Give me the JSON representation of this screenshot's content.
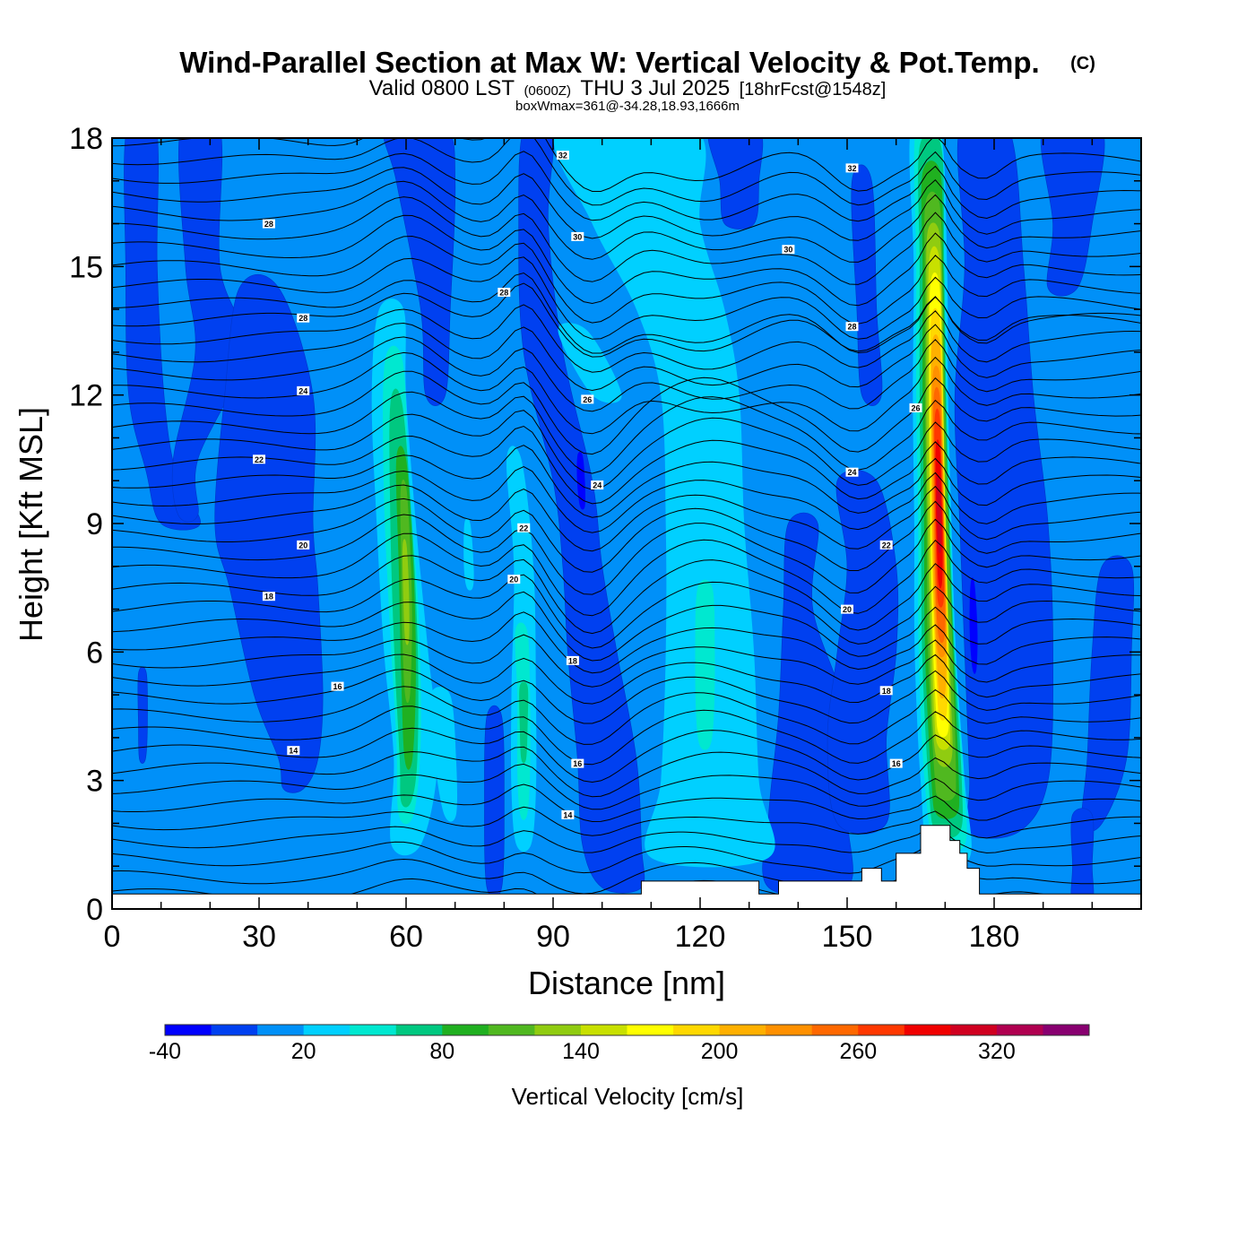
{
  "title": {
    "main": "Wind-Parallel Section at Max W: Vertical Velocity & Pot.Temp.",
    "copyright": "(C)",
    "valid_prefix": "Valid 0800 LST",
    "valid_utc": "(0600Z)",
    "valid_date": "THU 3 Jul 2025",
    "forecast": "[18hrFcst@1548z]",
    "box_info": "boxWmax=361@-34.28,18.93,1666m"
  },
  "chart_data": {
    "type": "heatmap",
    "xlabel": "Distance [nm]",
    "ylabel": "Height [Kft MSL]",
    "xlim": [
      0,
      210
    ],
    "ylim": [
      0,
      18
    ],
    "xticks": [
      0,
      30,
      60,
      90,
      120,
      150,
      180
    ],
    "yticks": [
      0,
      3,
      6,
      9,
      12,
      15,
      18
    ],
    "colorbar": {
      "title": "Vertical Velocity [cm/s]",
      "levels": [
        -40,
        -20,
        0,
        20,
        40,
        60,
        80,
        100,
        120,
        140,
        160,
        180,
        200,
        220,
        240,
        260,
        280,
        300,
        320,
        340,
        360
      ],
      "tick_labels": [
        -40,
        20,
        80,
        140,
        200,
        260,
        320
      ],
      "colors": [
        "#0000ff",
        "#0040f0",
        "#0090f8",
        "#00d0ff",
        "#00e8d0",
        "#00c880",
        "#20b020",
        "#50b820",
        "#90cc10",
        "#c8e000",
        "#ffff00",
        "#ffd800",
        "#ffb000",
        "#ff9000",
        "#ff6800",
        "#ff3800",
        "#f00000",
        "#d00020",
        "#b00050",
        "#880070"
      ]
    },
    "features": [
      {
        "x": 60,
        "y_range": [
          1.5,
          13.5
        ],
        "peak_w": 130
      },
      {
        "x": 84,
        "y_range": [
          1.5,
          10.5
        ],
        "peak_w": 80
      },
      {
        "x": 121,
        "y_range": [
          1.2,
          18
        ],
        "peak_w": 50
      },
      {
        "x": 168.5,
        "y_range": [
          1.5,
          18
        ],
        "peak_w": 361
      }
    ],
    "theta_contour_labels": [
      {
        "value": "32",
        "x": 92,
        "y": 17.6
      },
      {
        "value": "32",
        "x": 151,
        "y": 17.3
      },
      {
        "value": "30",
        "x": 95,
        "y": 15.7
      },
      {
        "value": "30",
        "x": 138,
        "y": 15.4
      },
      {
        "value": "28",
        "x": 32,
        "y": 16.0
      },
      {
        "value": "28",
        "x": 80,
        "y": 14.4
      },
      {
        "value": "28",
        "x": 39,
        "y": 13.8
      },
      {
        "value": "28",
        "x": 151,
        "y": 13.6
      },
      {
        "value": "26",
        "x": 97,
        "y": 11.9
      },
      {
        "value": "26",
        "x": 164,
        "y": 11.7
      },
      {
        "value": "24",
        "x": 39,
        "y": 12.1
      },
      {
        "value": "24",
        "x": 99,
        "y": 9.9
      },
      {
        "value": "24",
        "x": 151,
        "y": 10.2
      },
      {
        "value": "22",
        "x": 30,
        "y": 10.5
      },
      {
        "value": "22",
        "x": 84,
        "y": 8.9
      },
      {
        "value": "22",
        "x": 158,
        "y": 8.5
      },
      {
        "value": "20",
        "x": 39,
        "y": 8.5
      },
      {
        "value": "20",
        "x": 82,
        "y": 7.7
      },
      {
        "value": "20",
        "x": 150,
        "y": 7.0
      },
      {
        "value": "18",
        "x": 32,
        "y": 7.3
      },
      {
        "value": "18",
        "x": 94,
        "y": 5.8
      },
      {
        "value": "18",
        "x": 158,
        "y": 5.1
      },
      {
        "value": "16",
        "x": 46,
        "y": 5.2
      },
      {
        "value": "16",
        "x": 95,
        "y": 3.4
      },
      {
        "value": "16",
        "x": 160,
        "y": 3.4
      },
      {
        "value": "14",
        "x": 37,
        "y": 3.7
      },
      {
        "value": "14",
        "x": 93,
        "y": 2.2
      }
    ]
  }
}
